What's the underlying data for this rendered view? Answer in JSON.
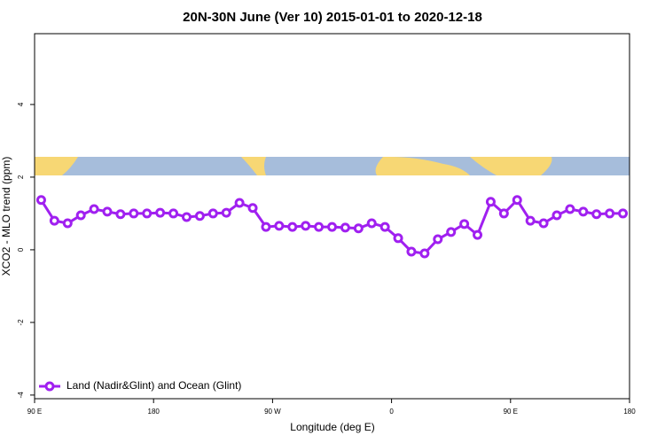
{
  "chart_data": {
    "type": "line",
    "title": "20N-30N June (Ver 10)   2015-01-01 to 2020-12-18",
    "x_label": "Longitude (deg E)",
    "y_label": "XCO2 - MLO trend (ppm)",
    "x": [
      95,
      105,
      115,
      125,
      135,
      145,
      155,
      165,
      175,
      185,
      195,
      205,
      215,
      225,
      235,
      245,
      255,
      265,
      275,
      285,
      295,
      305,
      315,
      325,
      335,
      345,
      355,
      365,
      375,
      385,
      395,
      405,
      415,
      425,
      435,
      445,
      455,
      465,
      475,
      485,
      495,
      505,
      515,
      525,
      535
    ],
    "series": [
      {
        "name": "Land (Nadir&Glint) and Ocean (Glint)",
        "color": "#a020f0",
        "values": [
          1.37,
          0.8,
          0.73,
          0.95,
          1.12,
          1.05,
          0.98,
          1.0,
          1.0,
          1.02,
          1.0,
          0.9,
          0.93,
          1.0,
          1.02,
          1.29,
          1.15,
          0.63,
          0.66,
          0.63,
          0.66,
          0.63,
          0.63,
          0.61,
          0.59,
          0.73,
          0.63,
          0.32,
          -0.05,
          -0.1,
          0.29,
          0.49,
          0.71,
          0.41,
          1.32,
          1.0,
          1.37,
          0.8,
          0.73,
          0.95,
          1.12,
          1.05,
          0.98,
          1.0,
          1.0
        ]
      }
    ],
    "xlim": [
      90,
      540
    ],
    "xticks": [
      {
        "value": 90,
        "label": "90 E"
      },
      180,
      {
        "value": 270,
        "label": "90 W"
      },
      {
        "value": 360,
        "label": "0"
      },
      {
        "value": 450,
        "label": "90 E"
      },
      {
        "value": 540,
        "label": "180"
      }
    ],
    "ylim": [
      -4.1,
      5.95
    ],
    "yticks": [
      -4,
      -2,
      0,
      2,
      4
    ],
    "legend": "bottomleft"
  }
}
